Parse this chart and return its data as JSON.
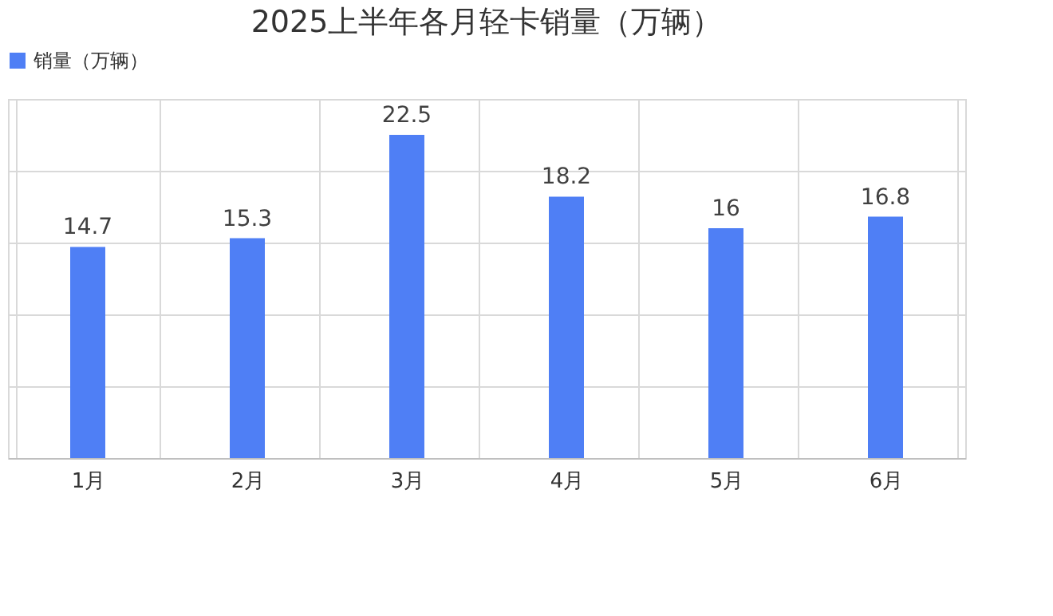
{
  "chart_data": {
    "type": "bar",
    "title": "2025上半年各月轻卡销量（万辆）",
    "categories": [
      "1月",
      "2月",
      "3月",
      "4月",
      "5月",
      "6月"
    ],
    "series": [
      {
        "name": "销量（万辆）",
        "color": "#4f7ff5",
        "values": [
          14.7,
          15.3,
          22.5,
          18.2,
          16,
          16.8
        ]
      }
    ],
    "ylim": [
      0,
      25
    ],
    "yticks": [
      {
        "value": 0,
        "label": null
      },
      {
        "value": 5,
        "label": null
      },
      {
        "value": 10,
        "label": null
      },
      {
        "value": 15,
        "label": null
      },
      {
        "value": 20,
        "label": null
      },
      {
        "value": 25,
        "label": null
      }
    ],
    "tick_labels": "x",
    "grid": true,
    "legend": "top",
    "data_labels": true
  }
}
